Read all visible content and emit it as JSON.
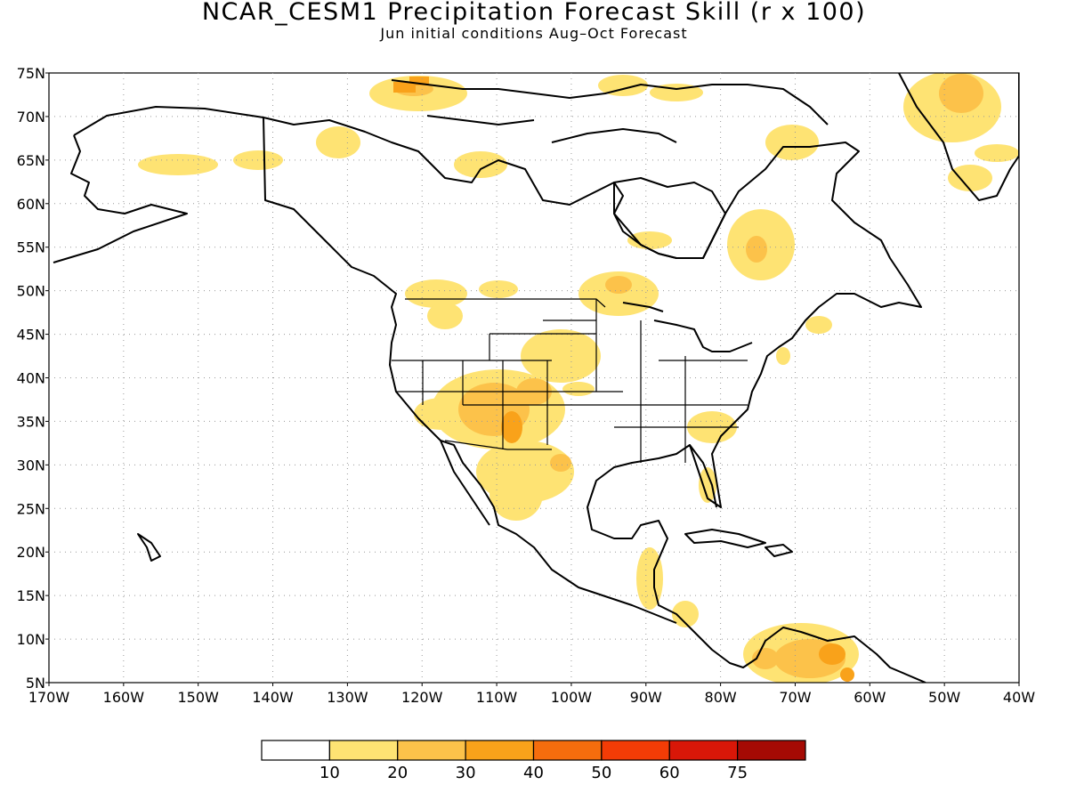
{
  "title": "NCAR_CESM1 Precipitation Forecast Skill (r x 100)",
  "subtitle": "Jun initial conditions  Aug–Oct Forecast",
  "axes": {
    "lat_labels": [
      "75N",
      "70N",
      "65N",
      "60N",
      "55N",
      "50N",
      "45N",
      "40N",
      "35N",
      "30N",
      "25N",
      "20N",
      "15N",
      "10N",
      "5N"
    ],
    "lon_labels": [
      "170W",
      "160W",
      "150W",
      "140W",
      "130W",
      "120W",
      "110W",
      "100W",
      "90W",
      "80W",
      "70W",
      "60W",
      "50W",
      "40W"
    ],
    "lat_range": [
      5,
      75
    ],
    "lon_range": [
      -170,
      -40
    ],
    "grid": "dotted"
  },
  "colorbar": {
    "labels": [
      "10",
      "20",
      "30",
      "40",
      "50",
      "60",
      "75"
    ],
    "colors": [
      "#ffffff",
      "#fee373",
      "#fcc24a",
      "#f9a21a",
      "#f56d0d",
      "#f33c06",
      "#d91708",
      "#a50a04"
    ]
  },
  "skill_regions": [
    {
      "region": "Central Alaska",
      "lon": -148,
      "lat": 64.5,
      "level": 1
    },
    {
      "region": "Southwest US / Four Corners",
      "lon": -110,
      "lat": 36,
      "level": 2
    },
    {
      "region": "Arizona–New Mexico core",
      "lon": -108,
      "lat": 33,
      "level": 3
    },
    {
      "region": "Northern Mexico",
      "lon": -105,
      "lat": 28,
      "level": 1
    },
    {
      "region": "Western Ontario",
      "lon": -91,
      "lat": 49,
      "level": 2
    },
    {
      "region": "Quebec / Labrador",
      "lon": -69,
      "lat": 55,
      "level": 2
    },
    {
      "region": "Southern Greenland",
      "lon": -47,
      "lat": 71,
      "level": 1
    },
    {
      "region": "Northern South America",
      "lon": -68,
      "lat": 7,
      "level": 2
    },
    {
      "region": "Venezuela core",
      "lon": -65,
      "lat": 6,
      "level": 3
    }
  ]
}
